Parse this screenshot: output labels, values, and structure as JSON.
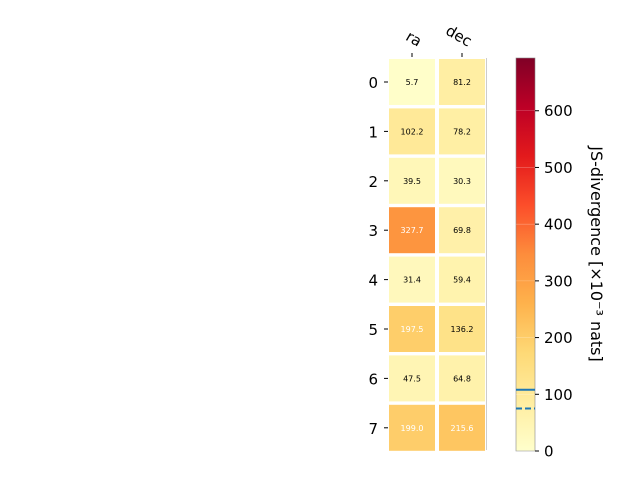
{
  "chart_data": {
    "type": "heatmap",
    "columns": [
      "ra",
      "dec"
    ],
    "rows": [
      "0",
      "1",
      "2",
      "3",
      "4",
      "5",
      "6",
      "7"
    ],
    "values": [
      [
        5.7,
        81.2
      ],
      [
        102.2,
        78.2
      ],
      [
        39.5,
        30.3
      ],
      [
        327.7,
        69.8
      ],
      [
        31.4,
        59.4
      ],
      [
        197.5,
        136.2
      ],
      [
        47.5,
        64.8
      ],
      [
        199.0,
        215.6
      ]
    ],
    "cell_labels": [
      [
        "5.7",
        "81.2"
      ],
      [
        "102.2",
        "78.2"
      ],
      [
        "39.5",
        "30.3"
      ],
      [
        "327.7",
        "69.8"
      ],
      [
        "31.4",
        "59.4"
      ],
      [
        "197.5",
        "136.2"
      ],
      [
        "47.5",
        "64.8"
      ],
      [
        "199.0",
        "215.6"
      ]
    ],
    "colormap": "YlOrRd",
    "colorbar": {
      "label": "JS-divergence [×10⁻³ nats]",
      "range": [
        0,
        693
      ],
      "ticks": [
        0,
        100,
        200,
        300,
        400,
        500,
        600
      ],
      "reference_lines": [
        {
          "value": 108,
          "style": "solid",
          "color": "#1f77b4"
        },
        {
          "value": 75,
          "style": "dashed",
          "color": "#1f77b4"
        }
      ]
    }
  }
}
